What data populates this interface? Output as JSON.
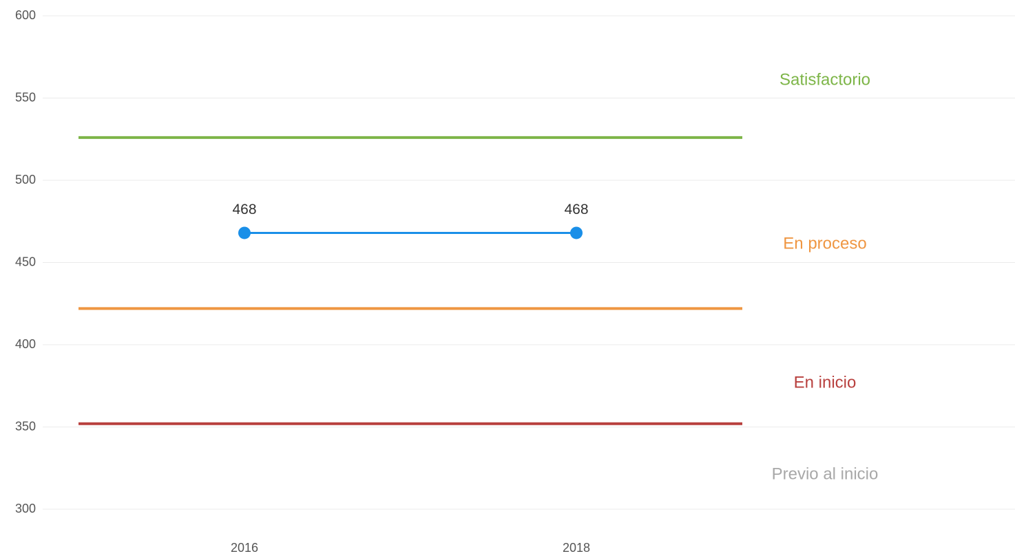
{
  "chart_data": {
    "type": "line",
    "categories": [
      "2016",
      "2018"
    ],
    "series": [
      {
        "color": "#1a8fe8",
        "values": [
          468,
          468
        ]
      }
    ],
    "levels": [
      {
        "label": "Satisfactorio",
        "color": "#7db548",
        "value": 526
      },
      {
        "label": "En proceso",
        "color": "#ef9642",
        "value": 422
      },
      {
        "label": "En inicio",
        "color": "#b8403e",
        "value": 352
      },
      {
        "label": "Previo al inicio",
        "color": "#a8a8a8"
      }
    ],
    "ylim": [
      300,
      600
    ],
    "yticks": [
      300,
      350,
      400,
      450,
      500,
      550,
      600
    ],
    "grid": true
  }
}
